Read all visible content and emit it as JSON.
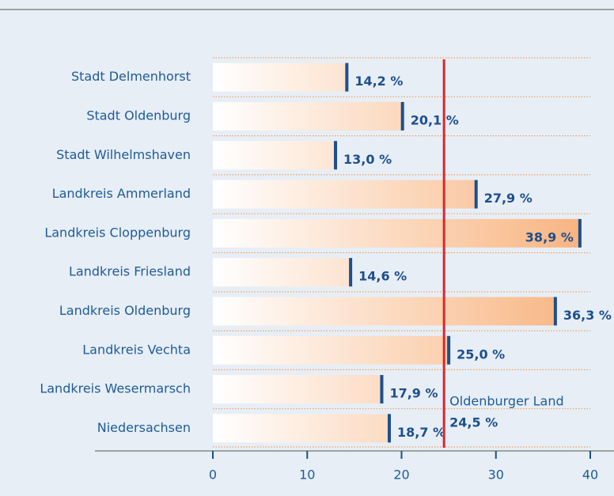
{
  "chart_data": {
    "type": "bar",
    "orientation": "horizontal",
    "categories": [
      "Stadt Delmenhorst",
      "Stadt Oldenburg",
      "Stadt Wilhelmshaven",
      "Landkreis Ammerland",
      "Landkreis Cloppenburg",
      "Landkreis Friesland",
      "Landkreis Oldenburg",
      "Landkreis Vechta",
      "Landkreis Wesermarsch",
      "Niedersachsen"
    ],
    "values": [
      14.2,
      20.1,
      13.0,
      27.9,
      38.9,
      14.6,
      36.3,
      25.0,
      17.9,
      18.7
    ],
    "value_labels": [
      "14,2 %",
      "20,1 %",
      "13,0 %",
      "27,9 %",
      "38,9 %",
      "14,6 %",
      "36,3 %",
      "25,0 %",
      "17,9 %",
      "18,7 %"
    ],
    "color": "#f8b27d",
    "marker_color": "#1d4f8c",
    "xlim": [
      0,
      40
    ],
    "xticks": [
      0,
      10,
      20,
      30,
      40
    ],
    "reference_line": {
      "value": 24.5,
      "label": "Oldenburger Land",
      "value_label": "24,5 %",
      "color": "#e0252b"
    }
  }
}
